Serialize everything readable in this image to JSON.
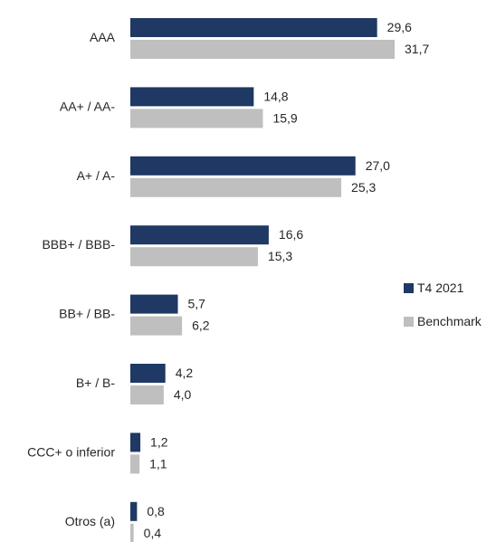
{
  "chart_data": {
    "type": "bar",
    "orientation": "horizontal",
    "categories": [
      "AAA",
      "AA+ / AA-",
      "A+ / A-",
      "BBB+ / BBB-",
      "BB+ / BB-",
      "B+ / B-",
      "CCC+ o inferior",
      "Otros (a)"
    ],
    "series": [
      {
        "name": "T4 2021",
        "color": "#1f3864",
        "values": [
          29.6,
          14.8,
          27.0,
          16.6,
          5.7,
          4.2,
          1.2,
          0.8
        ],
        "labels": [
          "29,6",
          "14,8",
          "27,0",
          "16,6",
          "5,7",
          "4,2",
          "1,2",
          "0,8"
        ]
      },
      {
        "name": "Benchmark",
        "color": "#bfbfbf",
        "values": [
          31.7,
          15.9,
          25.3,
          15.3,
          6.2,
          4.0,
          1.1,
          0.4
        ],
        "labels": [
          "31,7",
          "15,9",
          "25,3",
          "15,3",
          "6,2",
          "4,0",
          "1,1",
          "0,4"
        ]
      }
    ],
    "xlim": [
      0,
      31.7
    ],
    "grid": false,
    "legend_position": "right"
  }
}
